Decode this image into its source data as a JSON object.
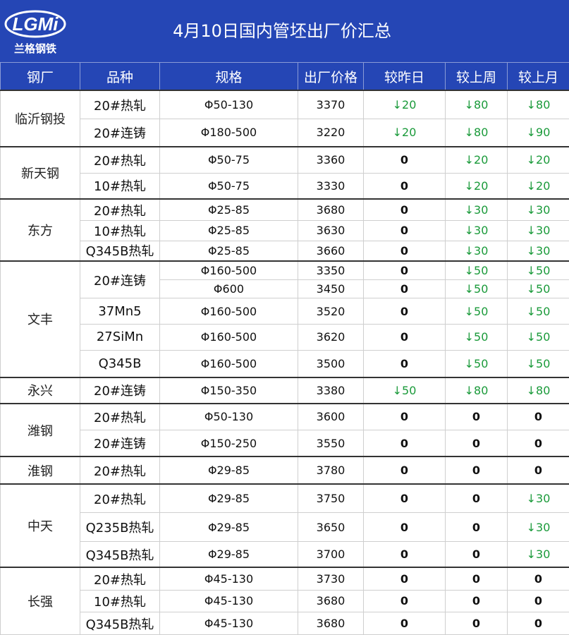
{
  "header": {
    "title": "4月10日国内管坯出厂价汇总",
    "logo_text": "LGMi",
    "logo_subtext": "兰格钢铁",
    "colors": {
      "banner": "#2546b5",
      "logo_ring": "#ffffff",
      "down_arrow": "#1a9a3a"
    }
  },
  "table": {
    "columns": [
      "钢厂",
      "品种",
      "规格",
      "出厂价格",
      "较昨日",
      "较上周",
      "较上月"
    ],
    "groups": [
      {
        "mill": "临沂钢投",
        "rows": [
          {
            "grade": "20#热轧",
            "spec": "Φ50-130",
            "price": "3370",
            "vs_yesterday": "↓20",
            "vs_week": "↓80",
            "vs_month": "↓80"
          },
          {
            "grade": "20#连铸",
            "spec": "Φ180-500",
            "price": "3220",
            "vs_yesterday": "↓20",
            "vs_week": "↓80",
            "vs_month": "↓90"
          }
        ]
      },
      {
        "mill": "新天钢",
        "rows": [
          {
            "grade": "20#热轧",
            "spec": "Φ50-75",
            "price": "3360",
            "vs_yesterday": "0",
            "vs_week": "↓20",
            "vs_month": "↓20"
          },
          {
            "grade": "10#热轧",
            "spec": "Φ50-75",
            "price": "3330",
            "vs_yesterday": "0",
            "vs_week": "↓20",
            "vs_month": "↓20"
          }
        ]
      },
      {
        "mill": "东方",
        "rows": [
          {
            "grade": "20#热轧",
            "spec": "Φ25-85",
            "price": "3680",
            "vs_yesterday": "0",
            "vs_week": "↓30",
            "vs_month": "↓30"
          },
          {
            "grade": "10#热轧",
            "spec": "Φ25-85",
            "price": "3630",
            "vs_yesterday": "0",
            "vs_week": "↓30",
            "vs_month": "↓30"
          },
          {
            "grade": "Q345B热轧",
            "spec": "Φ25-85",
            "price": "3660",
            "vs_yesterday": "0",
            "vs_week": "↓30",
            "vs_month": "↓30"
          }
        ]
      },
      {
        "mill": "文丰",
        "rows": [
          {
            "grade": "20#连铸",
            "spec": "Φ160-500",
            "price": "3350",
            "vs_yesterday": "0",
            "vs_week": "↓50",
            "vs_month": "↓50"
          },
          {
            "grade": "",
            "spec": "Φ600",
            "price": "3450",
            "vs_yesterday": "0",
            "vs_week": "↓50",
            "vs_month": "↓50"
          },
          {
            "grade": "37Mn5",
            "spec": "Φ160-500",
            "price": "3520",
            "vs_yesterday": "0",
            "vs_week": "↓50",
            "vs_month": "↓50"
          },
          {
            "grade": "27SiMn",
            "spec": "Φ160-500",
            "price": "3620",
            "vs_yesterday": "0",
            "vs_week": "↓50",
            "vs_month": "↓50"
          },
          {
            "grade": "Q345B",
            "spec": "Φ160-500",
            "price": "3500",
            "vs_yesterday": "0",
            "vs_week": "↓50",
            "vs_month": "↓50"
          }
        ]
      },
      {
        "mill": "永兴",
        "rows": [
          {
            "grade": "20#连铸",
            "spec": "Φ150-350",
            "price": "3380",
            "vs_yesterday": "↓50",
            "vs_week": "↓80",
            "vs_month": "↓80"
          }
        ]
      },
      {
        "mill": "潍钢",
        "rows": [
          {
            "grade": "20#热轧",
            "spec": "Φ50-130",
            "price": "3600",
            "vs_yesterday": "0",
            "vs_week": "0",
            "vs_month": "0"
          },
          {
            "grade": "20#连铸",
            "spec": "Φ150-250",
            "price": "3550",
            "vs_yesterday": "0",
            "vs_week": "0",
            "vs_month": "0"
          }
        ]
      },
      {
        "mill": "淮钢",
        "rows": [
          {
            "grade": "20#热轧",
            "spec": "Φ29-85",
            "price": "3780",
            "vs_yesterday": "0",
            "vs_week": "0",
            "vs_month": "0"
          }
        ]
      },
      {
        "mill": "中天",
        "rows": [
          {
            "grade": "20#热轧",
            "spec": "Φ29-85",
            "price": "3750",
            "vs_yesterday": "0",
            "vs_week": "0",
            "vs_month": "↓30"
          },
          {
            "grade": "Q235B热轧",
            "spec": "Φ29-85",
            "price": "3650",
            "vs_yesterday": "0",
            "vs_week": "0",
            "vs_month": "↓30"
          },
          {
            "grade": "Q345B热轧",
            "spec": "Φ29-85",
            "price": "3700",
            "vs_yesterday": "0",
            "vs_week": "0",
            "vs_month": "↓30"
          }
        ]
      },
      {
        "mill": "长强",
        "rows": [
          {
            "grade": "20#热轧",
            "spec": "Φ45-130",
            "price": "3730",
            "vs_yesterday": "0",
            "vs_week": "0",
            "vs_month": "0"
          },
          {
            "grade": "10#热轧",
            "spec": "Φ45-130",
            "price": "3680",
            "vs_yesterday": "0",
            "vs_week": "0",
            "vs_month": "0"
          },
          {
            "grade": "Q345B热轧",
            "spec": "Φ45-130",
            "price": "3680",
            "vs_yesterday": "0",
            "vs_week": "0",
            "vs_month": "0"
          }
        ]
      }
    ]
  }
}
